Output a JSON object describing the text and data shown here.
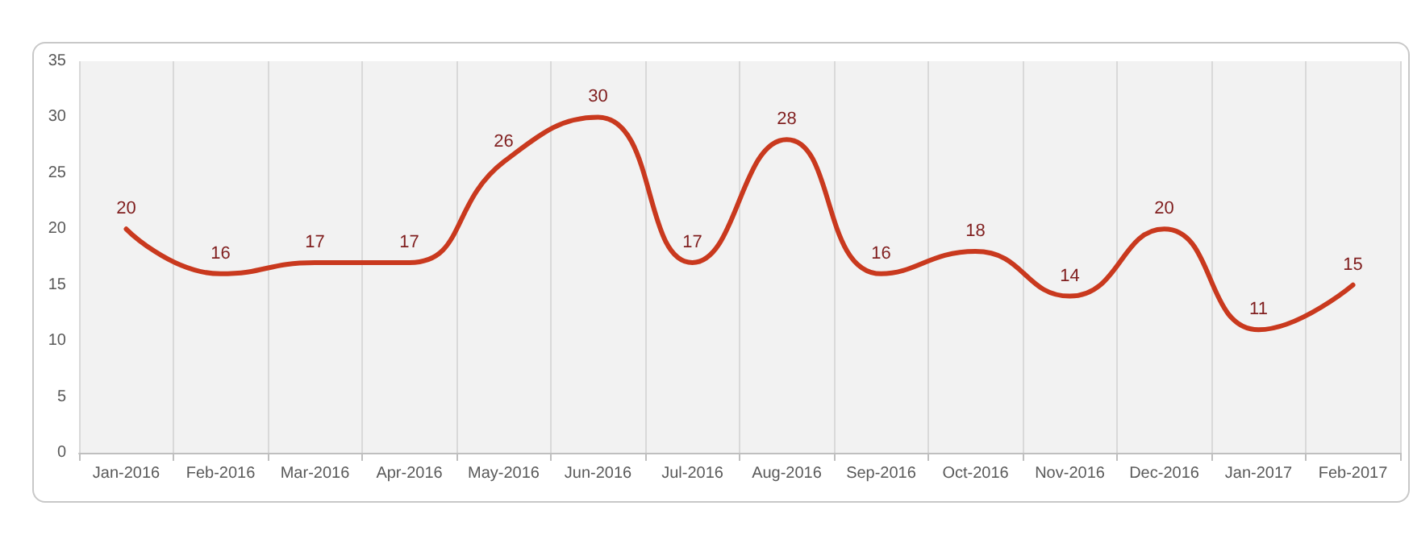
{
  "chart_data": {
    "type": "line",
    "categories": [
      "Jan-2016",
      "Feb-2016",
      "Mar-2016",
      "Apr-2016",
      "May-2016",
      "Jun-2016",
      "Jul-2016",
      "Aug-2016",
      "Sep-2016",
      "Oct-2016",
      "Nov-2016",
      "Dec-2016",
      "Jan-2017",
      "Feb-2017"
    ],
    "series": [
      {
        "color": "#c9391e",
        "values": [
          20,
          16,
          17,
          17,
          26,
          30,
          17,
          28,
          16,
          18,
          14,
          20,
          11,
          15
        ]
      }
    ],
    "ylim": [
      0,
      35
    ],
    "yticks": [
      0,
      5,
      10,
      15,
      20,
      25,
      30,
      35
    ],
    "grid": "x",
    "marker": "none",
    "line_style": "solid",
    "data_labels": true
  }
}
